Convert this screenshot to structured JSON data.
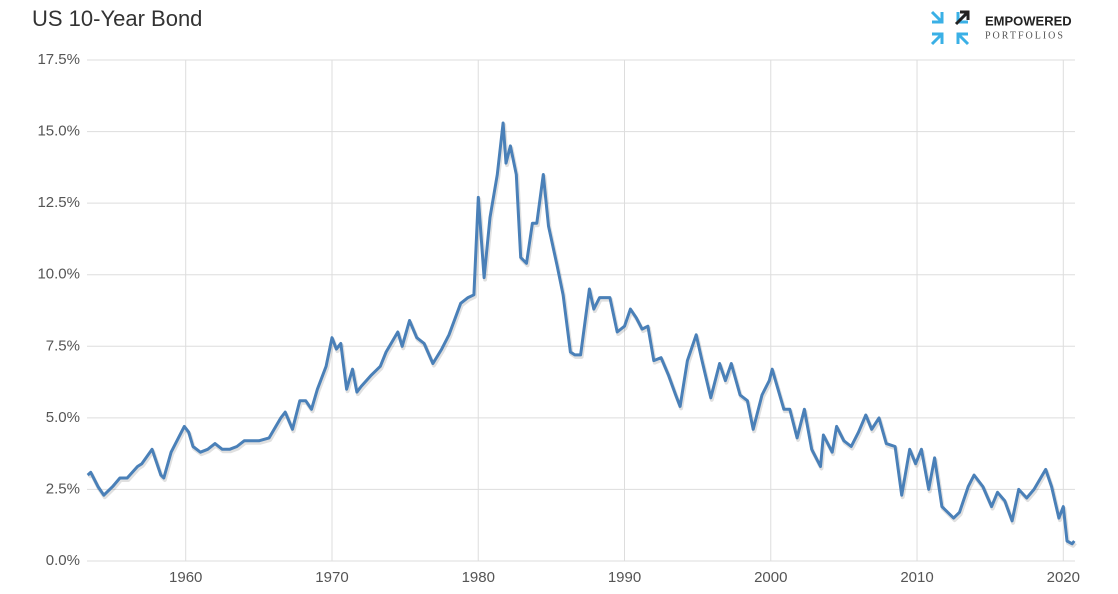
{
  "chart_data": {
    "type": "line",
    "title": "US 10-Year Bond",
    "x": [
      1953.3,
      1953.5,
      1954.0,
      1954.4,
      1955.0,
      1955.5,
      1956.0,
      1956.7,
      1957.0,
      1957.7,
      1958.3,
      1958.5,
      1959.0,
      1959.5,
      1959.9,
      1960.2,
      1960.5,
      1961.0,
      1961.5,
      1962.0,
      1962.5,
      1963.0,
      1963.5,
      1964.0,
      1965.0,
      1965.7,
      1966.5,
      1966.8,
      1967.3,
      1967.8,
      1968.2,
      1968.6,
      1969.0,
      1969.6,
      1970.0,
      1970.3,
      1970.6,
      1971.0,
      1971.4,
      1971.7,
      1972.0,
      1972.7,
      1973.3,
      1973.7,
      1974.5,
      1974.8,
      1975.3,
      1975.8,
      1976.3,
      1976.9,
      1977.5,
      1978.0,
      1978.8,
      1979.3,
      1979.7,
      1980.0,
      1980.4,
      1980.8,
      1981.3,
      1981.7,
      1981.9,
      1982.2,
      1982.6,
      1982.9,
      1983.3,
      1983.7,
      1984.0,
      1984.45,
      1984.8,
      1985.4,
      1985.8,
      1986.3,
      1986.6,
      1987.0,
      1987.6,
      1987.9,
      1988.3,
      1988.8,
      1989.0,
      1989.5,
      1990.0,
      1990.4,
      1990.8,
      1991.2,
      1991.6,
      1992.0,
      1992.5,
      1993.0,
      1993.5,
      1993.8,
      1994.3,
      1994.9,
      1995.3,
      1995.9,
      1996.5,
      1996.9,
      1997.3,
      1997.9,
      1998.4,
      1998.8,
      1999.4,
      1999.9,
      2000.1,
      2000.9,
      2001.3,
      2001.8,
      2002.3,
      2002.8,
      2003.4,
      2003.6,
      2004.2,
      2004.5,
      2005.0,
      2005.5,
      2006.0,
      2006.5,
      2006.9,
      2007.4,
      2007.9,
      2008.5,
      2008.95,
      2009.5,
      2009.9,
      2010.3,
      2010.8,
      2011.2,
      2011.7,
      2012.5,
      2012.9,
      2013.5,
      2013.9,
      2014.5,
      2015.1,
      2015.5,
      2016.0,
      2016.5,
      2016.95,
      2017.5,
      2018.0,
      2018.8,
      2019.2,
      2019.7,
      2020.0,
      2020.25,
      2020.6,
      2020.75
    ],
    "series": [
      {
        "name": "US 10-Year Bond",
        "color": "#4a80b8",
        "values": [
          3.0,
          3.1,
          2.6,
          2.3,
          2.6,
          2.9,
          2.9,
          3.3,
          3.4,
          3.9,
          3.0,
          2.9,
          3.8,
          4.3,
          4.7,
          4.5,
          4.0,
          3.8,
          3.9,
          4.1,
          3.9,
          3.9,
          4.0,
          4.2,
          4.2,
          4.3,
          5.0,
          5.2,
          4.6,
          5.6,
          5.6,
          5.3,
          6.0,
          6.8,
          7.8,
          7.4,
          7.6,
          6.0,
          6.7,
          5.9,
          6.1,
          6.5,
          6.8,
          7.3,
          8.0,
          7.5,
          8.4,
          7.8,
          7.6,
          6.9,
          7.4,
          7.9,
          9.0,
          9.2,
          9.3,
          12.7,
          9.9,
          12.0,
          13.5,
          15.3,
          13.9,
          14.5,
          13.5,
          10.6,
          10.4,
          11.8,
          11.8,
          13.5,
          11.7,
          10.3,
          9.3,
          7.3,
          7.2,
          7.2,
          9.5,
          8.8,
          9.2,
          9.2,
          9.2,
          8.0,
          8.2,
          8.8,
          8.5,
          8.1,
          8.2,
          7.0,
          7.1,
          6.5,
          5.8,
          5.4,
          7.0,
          7.9,
          7.0,
          5.7,
          6.9,
          6.3,
          6.9,
          5.8,
          5.6,
          4.6,
          5.8,
          6.3,
          6.7,
          5.3,
          5.3,
          4.3,
          5.3,
          3.9,
          3.3,
          4.4,
          3.8,
          4.7,
          4.2,
          4.0,
          4.5,
          5.1,
          4.6,
          5.0,
          4.1,
          4.0,
          2.3,
          3.9,
          3.4,
          3.9,
          2.5,
          3.6,
          1.9,
          1.5,
          1.7,
          2.6,
          3.0,
          2.6,
          1.9,
          2.4,
          2.1,
          1.4,
          2.5,
          2.2,
          2.5,
          3.2,
          2.6,
          1.5,
          1.9,
          0.7,
          0.6,
          0.7
        ]
      }
    ],
    "xlim": [
      1953.25,
      2020.8
    ],
    "xticks": [
      1960,
      1970,
      1980,
      1990,
      2000,
      2010,
      2020
    ],
    "ylim": [
      0,
      17.5
    ],
    "yticks": [
      {
        "value": 0,
        "label": "0.0%"
      },
      {
        "value": 2.5,
        "label": "2.5%"
      },
      {
        "value": 5,
        "label": "5.0%"
      },
      {
        "value": 7.5,
        "label": "7.5%"
      },
      {
        "value": 10,
        "label": "10.0%"
      },
      {
        "value": 12.5,
        "label": "12.5%"
      },
      {
        "value": 15,
        "label": "15.0%"
      },
      {
        "value": 17.5,
        "label": "17.5%"
      }
    ],
    "grid": true
  },
  "logo": {
    "name": "EMPOWERED",
    "sub": "PORTFOLIOS"
  }
}
